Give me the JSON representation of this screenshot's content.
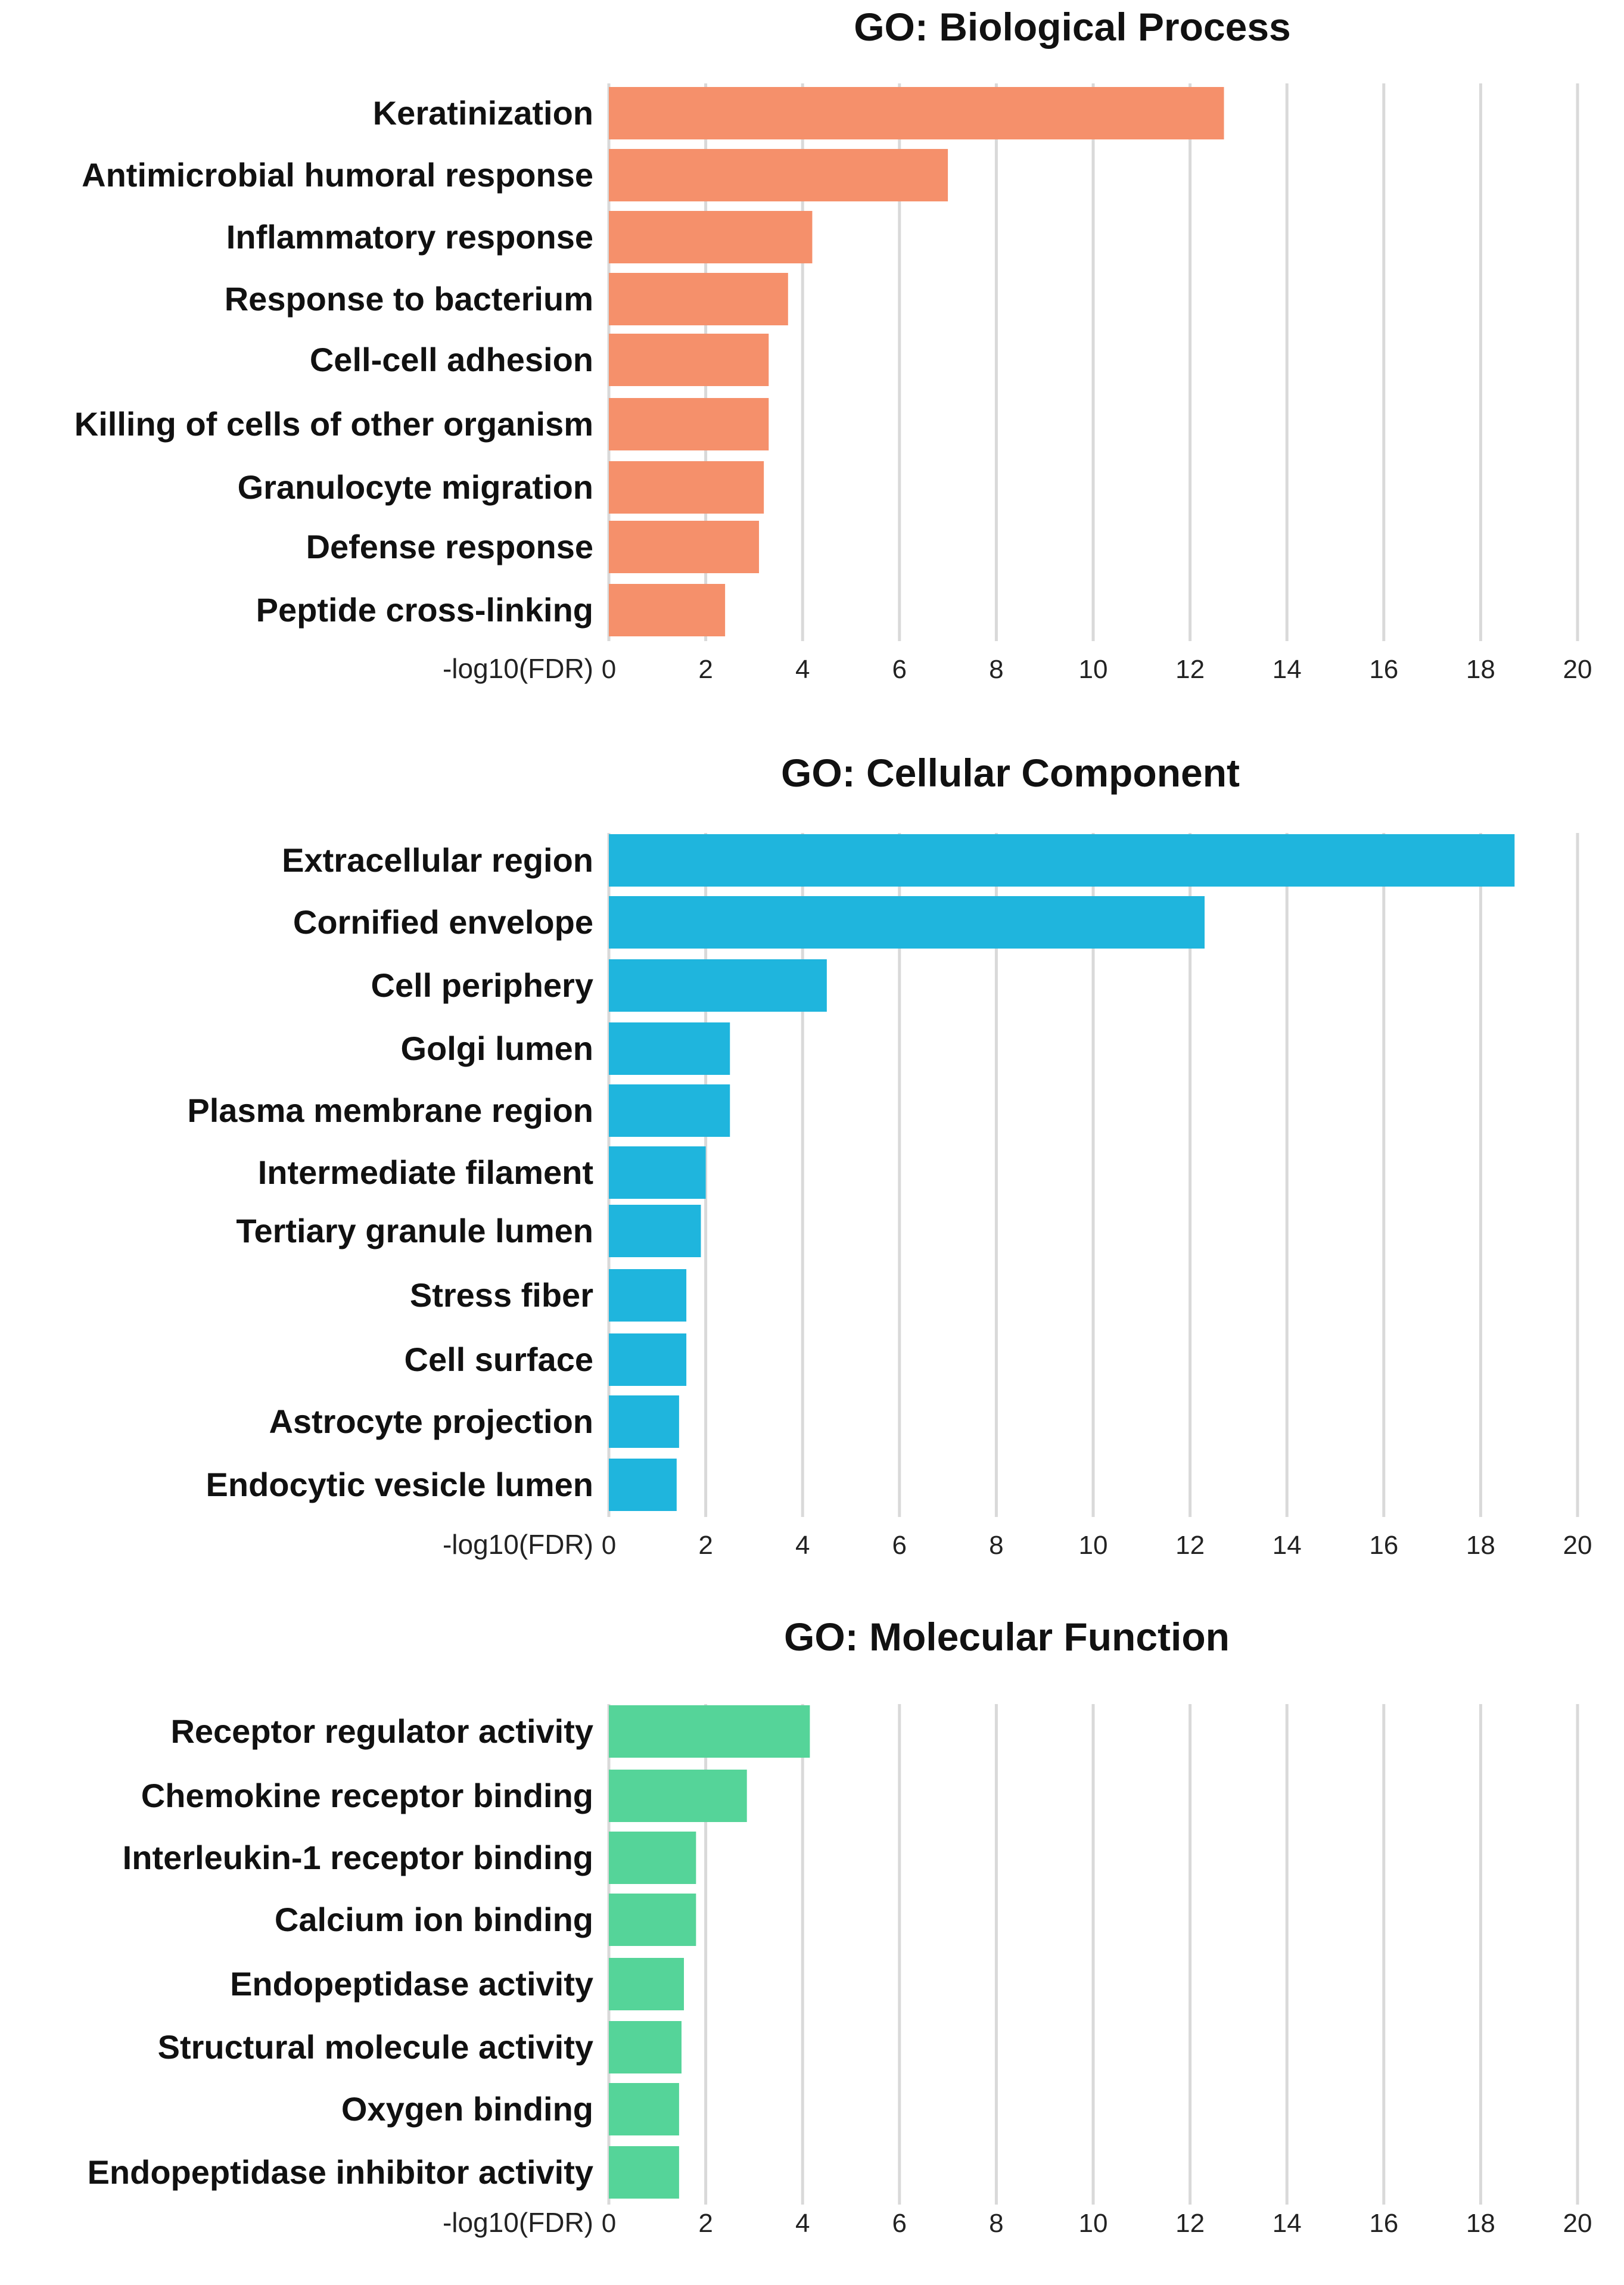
{
  "chart_data": [
    {
      "type": "bar",
      "orientation": "horizontal",
      "title": "GO: Biological Process",
      "xlabel": "-log10(FDR)",
      "ylabel": "",
      "xlim": [
        0,
        20
      ],
      "ticks": [
        "0",
        "2",
        "4",
        "6",
        "8",
        "10",
        "12",
        "14",
        "16",
        "18",
        "20"
      ],
      "grid": "vertical",
      "color": "#F5906B",
      "categories": [
        "Keratinization",
        "Antimicrobial humoral response",
        "Inflammatory response",
        "Response to bacterium",
        "Cell-cell adhesion",
        "Killing of cells of other organism",
        "Granulocyte migration",
        "Defense response",
        "Peptide cross-linking"
      ],
      "values": [
        12.7,
        7.0,
        4.2,
        3.7,
        3.3,
        3.3,
        3.2,
        3.1,
        2.4
      ]
    },
    {
      "type": "bar",
      "orientation": "horizontal",
      "title": "GO: Cellular Component",
      "xlabel": "-log10(FDR)",
      "ylabel": "",
      "xlim": [
        0,
        20
      ],
      "ticks": [
        "0",
        "2",
        "4",
        "6",
        "8",
        "10",
        "12",
        "14",
        "16",
        "18",
        "20"
      ],
      "grid": "vertical",
      "color": "#1FB5DD",
      "categories": [
        "Extracellular region",
        "Cornified envelope",
        "Cell periphery",
        "Golgi lumen",
        "Plasma membrane region",
        "Intermediate filament",
        "Tertiary granule lumen",
        "Stress fiber",
        "Cell surface",
        "Astrocyte projection",
        "Endocytic vesicle lumen"
      ],
      "values": [
        18.7,
        12.3,
        4.5,
        2.5,
        2.5,
        2.0,
        1.9,
        1.6,
        1.6,
        1.45,
        1.4
      ]
    },
    {
      "type": "bar",
      "orientation": "horizontal",
      "title": "GO: Molecular Function",
      "xlabel": "-log10(FDR)",
      "ylabel": "",
      "xlim": [
        0,
        20
      ],
      "ticks": [
        "0",
        "2",
        "4",
        "6",
        "8",
        "10",
        "12",
        "14",
        "16",
        "18",
        "20"
      ],
      "grid": "vertical",
      "color": "#55D499",
      "categories": [
        "Receptor regulator activity",
        "Chemokine receptor binding",
        "Interleukin-1 receptor binding",
        "Calcium ion binding",
        "Endopeptidase activity",
        "Structural molecule activity",
        "Oxygen binding",
        "Endopeptidase inhibitor activity"
      ],
      "values": [
        4.15,
        2.85,
        1.8,
        1.8,
        1.55,
        1.5,
        1.45,
        1.45
      ]
    }
  ]
}
